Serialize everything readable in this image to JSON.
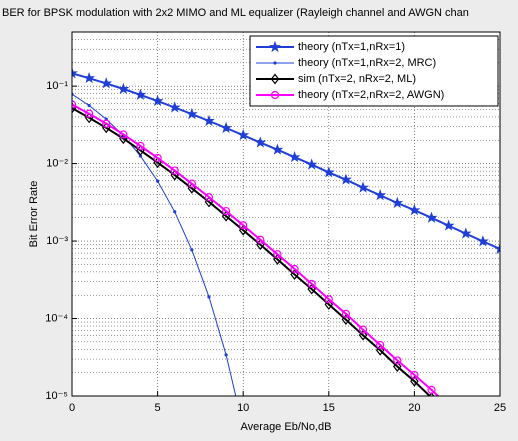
{
  "chart_data": {
    "type": "line",
    "title": "BER for BPSK modulation with 2x2 MIMO and ML equalizer (Rayleigh channel and AWGN chan",
    "xlabel": "Average Eb/No,dB",
    "ylabel": "Bit Error Rate",
    "log_y": true,
    "grid": true,
    "minor_grid": true,
    "legend": "upper right",
    "x": [
      0,
      1,
      2,
      3,
      4,
      5,
      6,
      7,
      8,
      9,
      10,
      11,
      12,
      13,
      14,
      15,
      16,
      17,
      18,
      19,
      20,
      21,
      22,
      23,
      24,
      25
    ],
    "xlim": [
      0,
      25
    ],
    "xticks": [
      0,
      5,
      10,
      15,
      20,
      25
    ],
    "ylim": [
      1e-05,
      0.5
    ],
    "yticks": [
      {
        "value": 1e-05,
        "label": "10⁻⁵"
      },
      {
        "value": 0.0001,
        "label": "10⁻⁴"
      },
      {
        "value": 0.001,
        "label": "10⁻³"
      },
      {
        "value": 0.01,
        "label": "10⁻²"
      },
      {
        "value": 0.1,
        "label": "10⁻¹"
      }
    ],
    "series": [
      {
        "name": "theory (nTx=1,nRx=1)",
        "color": "#1f3fd8",
        "marker": "star",
        "width": 2,
        "values": [
          0.1464,
          0.1267,
          0.1085,
          0.0919,
          0.0771,
          0.0642,
          0.053,
          0.0435,
          0.0355,
          0.0288,
          0.0233,
          0.0187,
          0.0151,
          0.0121,
          0.0097,
          0.0077,
          0.0062,
          0.0049,
          0.0039,
          0.0031,
          0.0025,
          0.002,
          0.00158,
          0.00125,
          0.00099,
          0.00079
        ]
      },
      {
        "name": "theory (nTx=1,nRx=2, MRC)",
        "color": "#1f3fd8",
        "marker": "dot",
        "width": 1,
        "values": [
          0.0786,
          0.0563,
          0.0375,
          0.0229,
          0.0125,
          0.00595,
          0.00239,
          0.00077,
          0.00019,
          3.4e-05,
          3.9e-06,
          null,
          null,
          null,
          null,
          null,
          null,
          null,
          null,
          null,
          null,
          null,
          null,
          null,
          null,
          null
        ]
      },
      {
        "name": "sim (nTx=2, nRx=2, ML)",
        "color": "#000000",
        "marker": "diamond",
        "width": 2,
        "values": [
          0.052,
          0.039,
          0.029,
          0.021,
          0.0148,
          0.0103,
          0.0071,
          0.0048,
          0.0032,
          0.0021,
          0.00138,
          0.0009,
          0.00058,
          0.00037,
          0.00024,
          0.000152,
          9.7e-05,
          6.1e-05,
          3.9e-05,
          2.4e-05,
          1.55e-05,
          9.5e-06,
          null,
          null,
          null,
          null
        ]
      },
      {
        "name": "theory (nTx=2,nRx=2, AWGN)",
        "color": "#ff00ff",
        "marker": "circle",
        "width": 2,
        "values": [
          0.058,
          0.0441,
          0.0328,
          0.0238,
          0.0169,
          0.01184,
          0.00813,
          0.00551,
          0.00369,
          0.00244,
          0.0016,
          0.00104,
          0.000677,
          0.000436,
          0.00028,
          0.000177,
          0.000115,
          7.2e-05,
          4.55e-05,
          2.88e-05,
          1.87e-05,
          1.2e-05,
          7.5e-06,
          null,
          null,
          null
        ]
      }
    ]
  }
}
